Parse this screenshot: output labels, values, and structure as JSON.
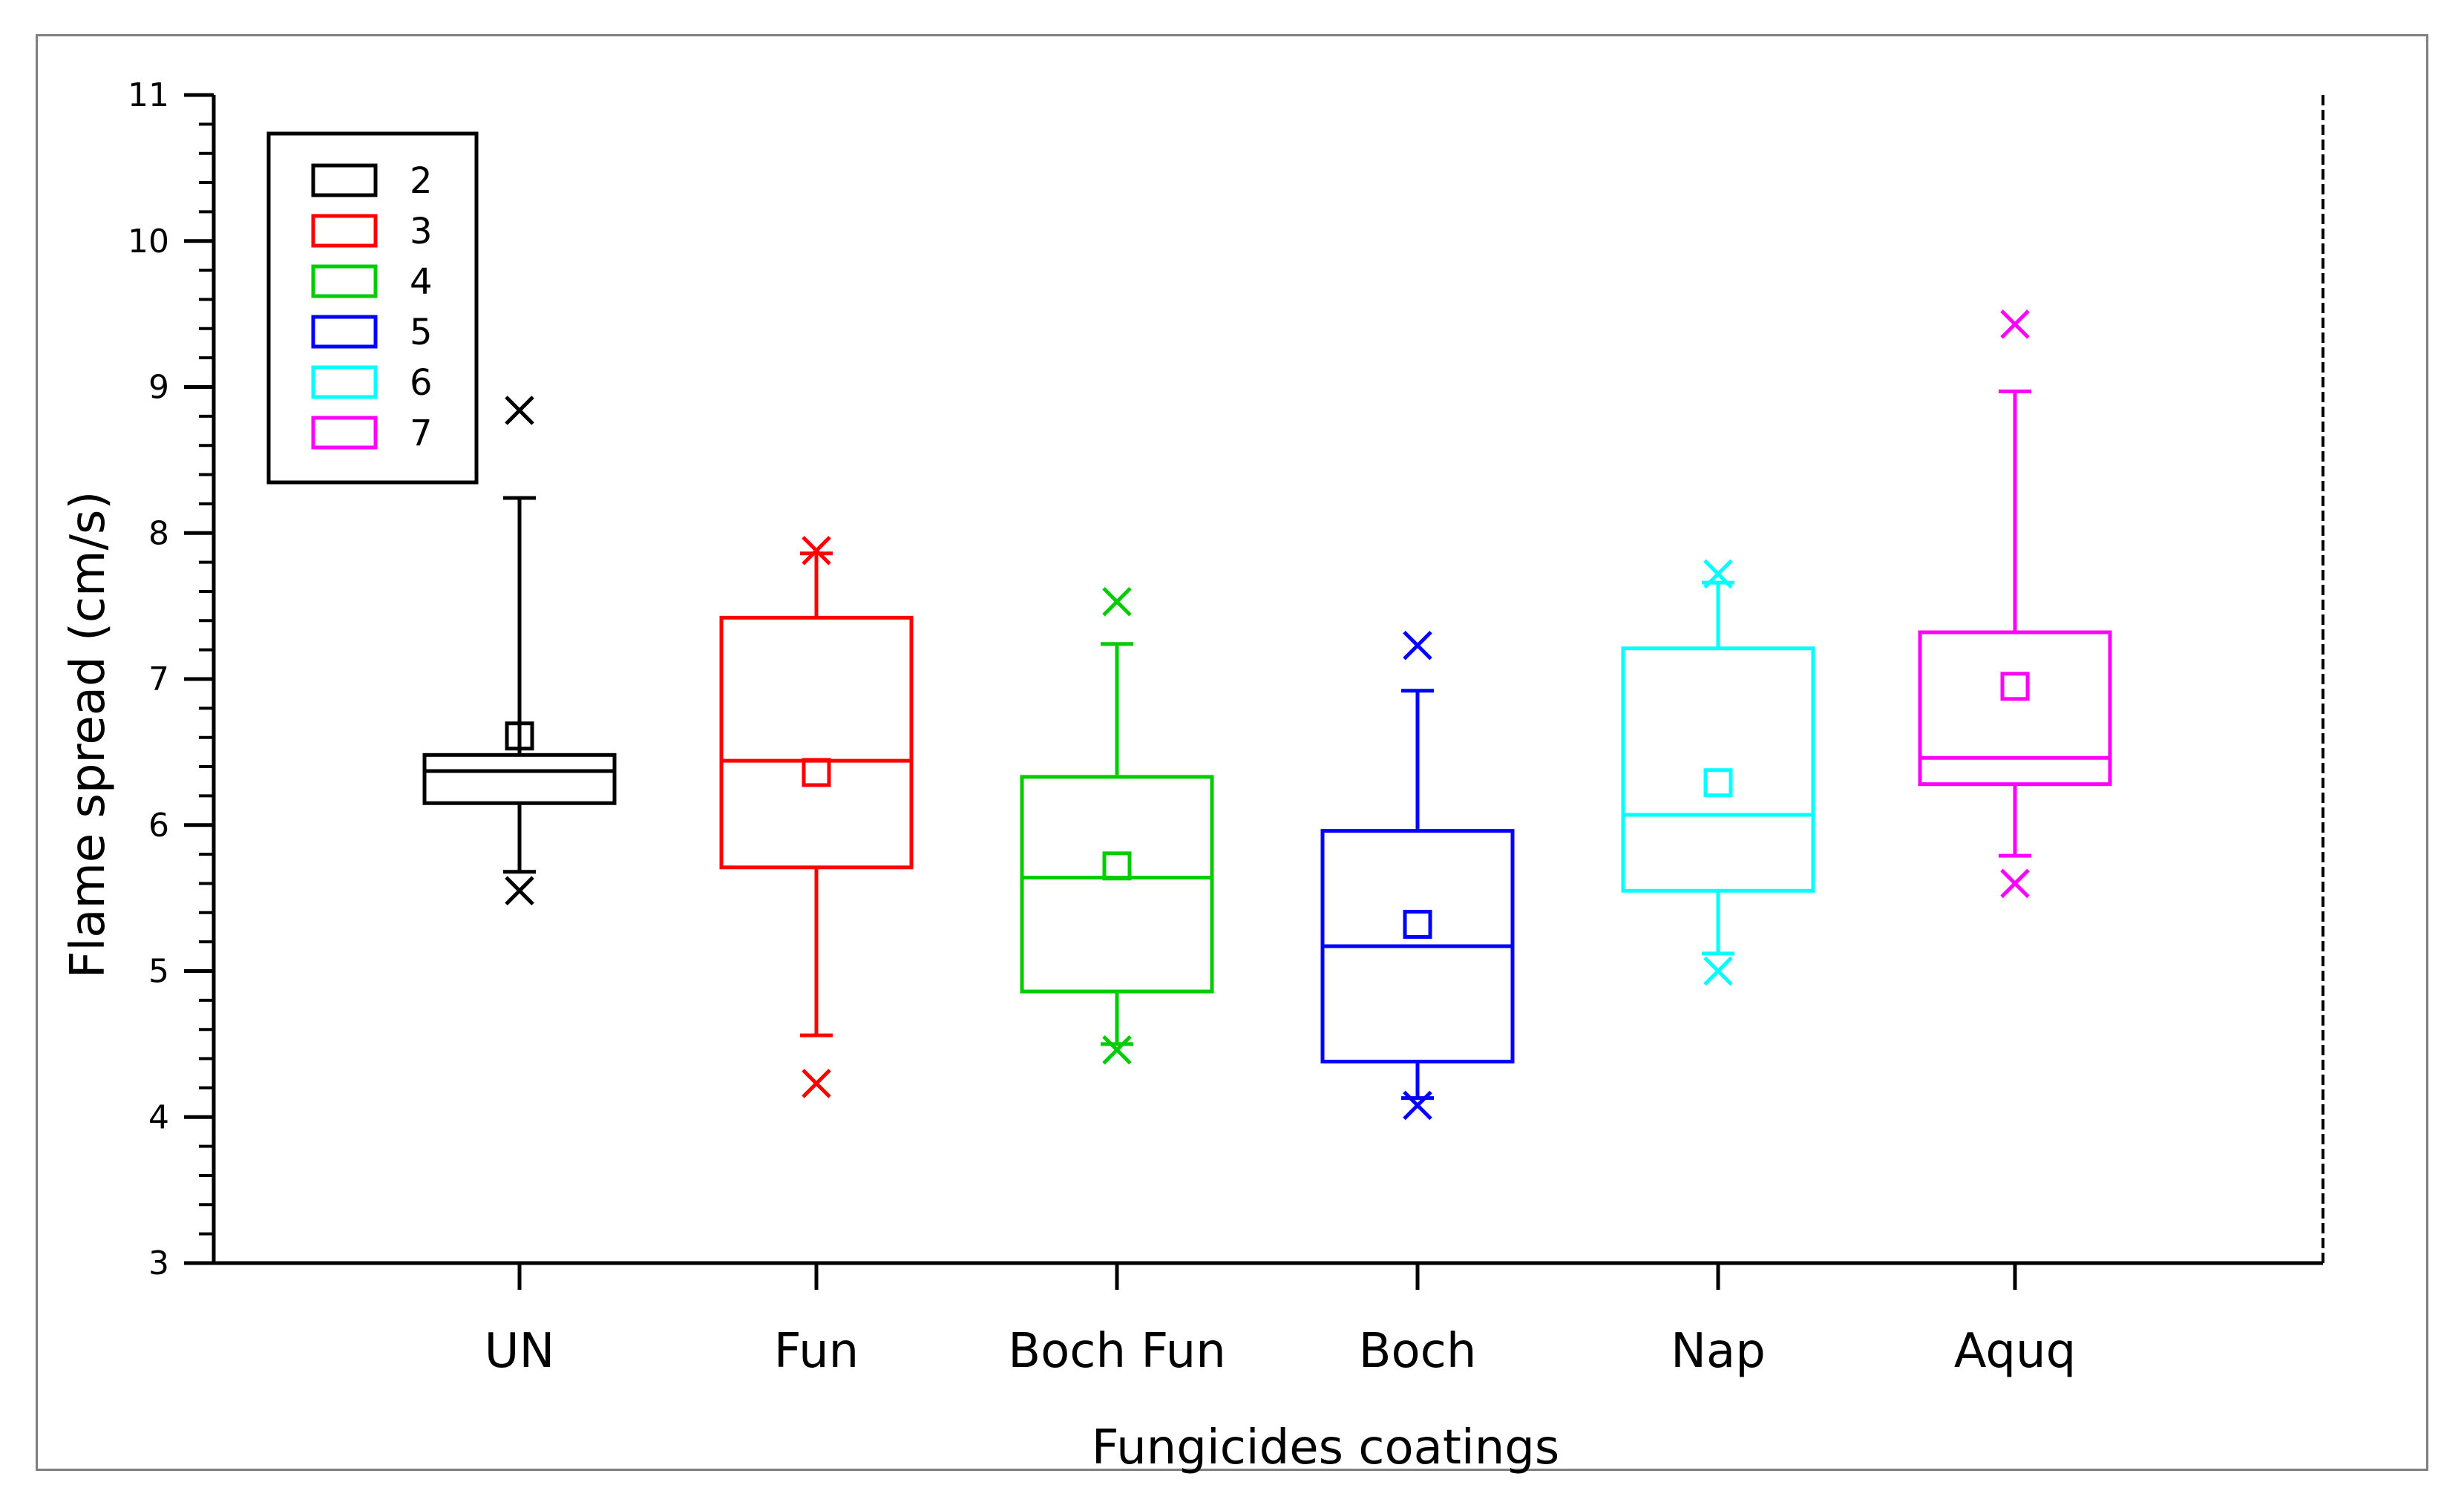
{
  "chart_data": {
    "type": "box",
    "title": "",
    "xlabel": "Fungicides coatings",
    "ylabel": "Flame spread (cm/s)",
    "ylim": [
      3,
      11
    ],
    "yticks": [
      "3",
      "4",
      "5",
      "6",
      "7",
      "8",
      "9",
      "10",
      "11"
    ],
    "grid": false,
    "legend_position": "top-left",
    "categories": [
      "UN",
      "Fun",
      "Boch Fun",
      "Boch",
      "Nap",
      "Aquq"
    ],
    "series": [
      {
        "name": "2",
        "color": "#000000",
        "whisker_low": 5.68,
        "q1": 6.15,
        "median": 6.37,
        "q3": 6.48,
        "whisker_high": 8.24,
        "mean": 6.61,
        "outliers": [
          5.55,
          8.84
        ]
      },
      {
        "name": "3",
        "color": "#ff0000",
        "whisker_low": 4.56,
        "q1": 5.71,
        "median": 6.44,
        "q3": 7.42,
        "whisker_high": 7.86,
        "mean": 6.36,
        "outliers": [
          4.23,
          7.88
        ]
      },
      {
        "name": "4",
        "color": "#00cc00",
        "whisker_low": 4.5,
        "q1": 4.86,
        "median": 5.64,
        "q3": 6.33,
        "whisker_high": 7.24,
        "mean": 5.72,
        "outliers": [
          4.46,
          7.53
        ]
      },
      {
        "name": "5",
        "color": "#0000ff",
        "whisker_low": 4.13,
        "q1": 4.38,
        "median": 5.17,
        "q3": 5.96,
        "whisker_high": 6.92,
        "mean": 5.32,
        "outliers": [
          4.08,
          7.23
        ]
      },
      {
        "name": "6",
        "color": "#00ffff",
        "whisker_low": 5.12,
        "q1": 5.55,
        "median": 6.07,
        "q3": 7.21,
        "whisker_high": 7.66,
        "mean": 6.29,
        "outliers": [
          5.0,
          7.72
        ]
      },
      {
        "name": "7",
        "color": "#ff00ff",
        "whisker_low": 5.79,
        "q1": 6.28,
        "median": 6.46,
        "q3": 7.32,
        "whisker_high": 8.97,
        "mean": 6.95,
        "outliers": [
          5.6,
          9.43
        ]
      }
    ]
  }
}
